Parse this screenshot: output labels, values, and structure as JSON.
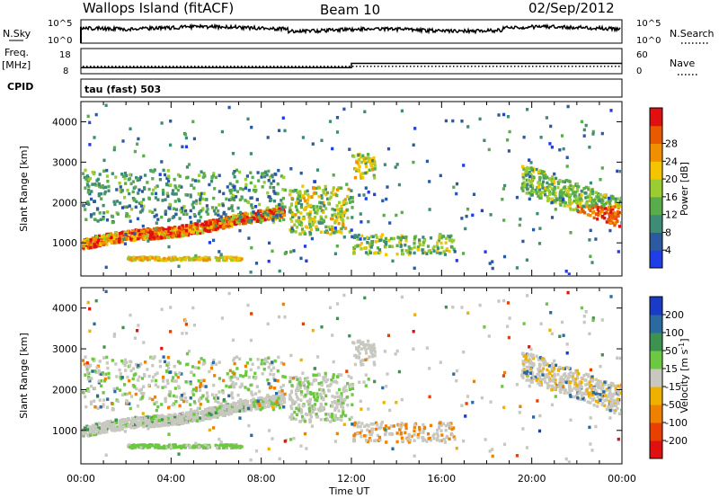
{
  "header": {
    "station": "Wallops Island (fitACF)",
    "beam": "Beam 10",
    "date": "02/Sep/2012"
  },
  "summary_panels": {
    "nsky_label": "N.Sky",
    "nsky_ticks": [
      "10^5",
      "10^0"
    ],
    "nsearch_label": "N.Search",
    "nsearch_ticks": [
      "10^5",
      "10^0"
    ],
    "freq_label_line1": "Freq.",
    "freq_label_line2": "[MHz]",
    "freq_ticks": [
      "18",
      "8"
    ],
    "nave_label": "Nave",
    "nave_ticks": [
      "60",
      "0"
    ],
    "cpid_label": "CPID",
    "cpid_text": "tau (fast) 503"
  },
  "chart_data": [
    {
      "type": "line",
      "panel": "frequency",
      "ylabel": "Freq. [MHz]",
      "ylim": [
        8,
        18
      ],
      "x_hours": [
        0,
        12,
        12,
        24
      ],
      "freq_mhz": [
        10.2,
        10.2,
        12.3,
        12.3
      ],
      "nave_ylim": [
        0,
        60
      ],
      "nave_value": 25
    },
    {
      "type": "heatmap",
      "panel": "power",
      "xlabel": "",
      "ylabel": "Slant Range [km]",
      "xlim_hours": [
        0,
        24
      ],
      "ylim_km": [
        180,
        4500
      ],
      "x_ticks": [
        "00:00",
        "04:00",
        "08:00",
        "12:00",
        "16:00",
        "20:00",
        "00:00"
      ],
      "y_ticks": [
        1000,
        2000,
        3000,
        4000
      ],
      "colorbar": {
        "label": "Power [dB]",
        "ticks": [
          4,
          8,
          12,
          16,
          20,
          24,
          28
        ],
        "colors": [
          "#1f3ee8",
          "#2c5aa0",
          "#3f8c76",
          "#58ad4a",
          "#9bcc32",
          "#f5c400",
          "#f09000",
          "#e85a00",
          "#e01010"
        ]
      }
    },
    {
      "type": "heatmap",
      "panel": "velocity",
      "xlabel": "Time UT",
      "ylabel": "Slant Range [km]",
      "xlim_hours": [
        0,
        24
      ],
      "ylim_km": [
        180,
        4500
      ],
      "x_ticks": [
        "00:00",
        "04:00",
        "08:00",
        "12:00",
        "16:00",
        "20:00",
        "00:00"
      ],
      "y_ticks": [
        1000,
        2000,
        3000,
        4000
      ],
      "colorbar": {
        "label": "Velocity [m s",
        "label_sup": "-1",
        "label_close": "]",
        "ticks": [
          "200",
          "100",
          "50",
          "15",
          "-15",
          "-50",
          "-100",
          "-200"
        ],
        "colors": [
          "#1a3ac8",
          "#2a6aa0",
          "#3d9250",
          "#6cc840",
          "#c8c8c0",
          "#f0b000",
          "#f08000",
          "#e84000",
          "#e01010"
        ]
      }
    }
  ]
}
